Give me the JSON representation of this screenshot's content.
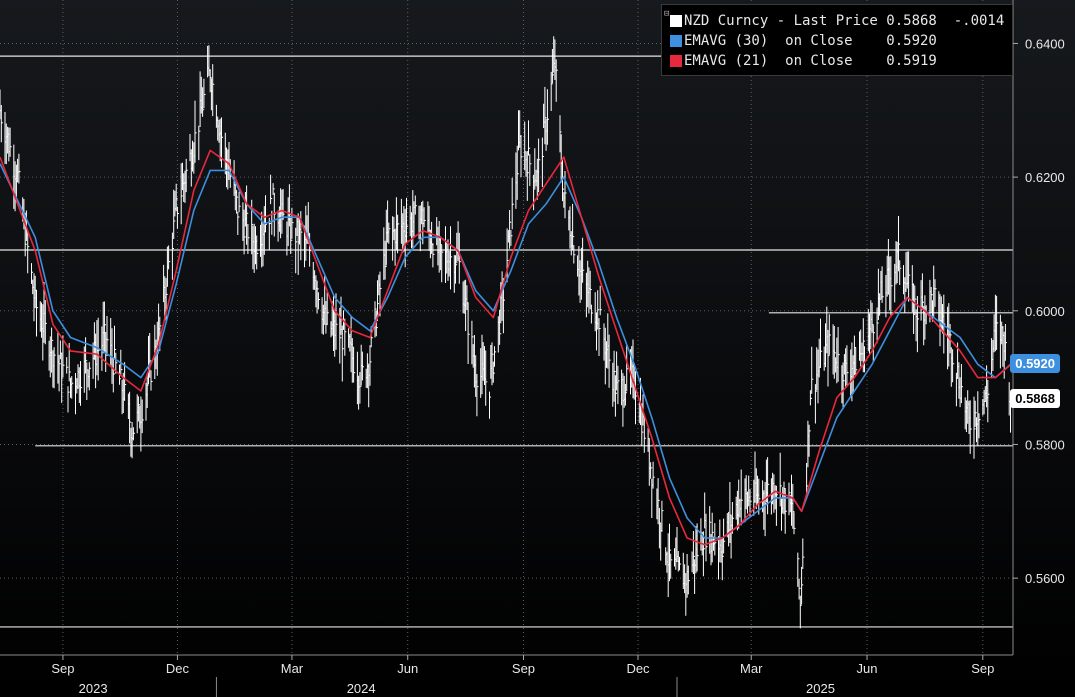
{
  "chart_data": {
    "type": "line",
    "title": "",
    "ylim": [
      0.5485,
      0.6465
    ],
    "y_ticks": [
      "0.6400",
      "0.6200",
      "0.6000",
      "0.5800",
      "0.5600"
    ],
    "x_range": [
      "2023-07-13",
      "2025-09-25"
    ],
    "x_month_ticks": [
      {
        "label": "Sep",
        "date": "2023-09-01"
      },
      {
        "label": "Dec",
        "date": "2023-12-01"
      },
      {
        "label": "Mar",
        "date": "2024-03-01"
      },
      {
        "label": "Jun",
        "date": "2024-06-01"
      },
      {
        "label": "Sep",
        "date": "2024-09-01"
      },
      {
        "label": "Dec",
        "date": "2024-12-01"
      },
      {
        "label": "Mar",
        "date": "2025-03-01"
      },
      {
        "label": "Jun",
        "date": "2025-06-01"
      },
      {
        "label": "Sep",
        "date": "2025-09-01"
      }
    ],
    "x_year_labels": [
      {
        "label": "2023",
        "date": "2023-09-25"
      },
      {
        "label": "2024",
        "date": "2024-04-25"
      },
      {
        "label": "2025",
        "date": "2025-04-25"
      }
    ],
    "year_dividers": [
      "2024-01-01",
      "2025-01-01"
    ],
    "grid": true,
    "legend": "top-right",
    "reference_lines": [
      {
        "y": 0.6381,
        "x_from": "2023-07-13"
      },
      {
        "y": 0.6091,
        "x_from": "2023-07-13"
      },
      {
        "y": 0.5997,
        "x_from": "2025-03-15"
      },
      {
        "y": 0.5798,
        "x_from": "2023-08-10"
      },
      {
        "y": 0.5527,
        "x_from": "2023-07-13"
      }
    ],
    "series": [
      {
        "name": "NZD Curncy - Last Price",
        "legend_value": "0.5868",
        "legend_change": "-.0014",
        "color": "#ffffff",
        "style": "hlc_bars",
        "points": [
          [
            "2023-07-13",
            0.63
          ],
          [
            "2023-07-27",
            0.62
          ],
          [
            "2023-08-10",
            0.601
          ],
          [
            "2023-08-24",
            0.594
          ],
          [
            "2023-09-07",
            0.589
          ],
          [
            "2023-09-21",
            0.592
          ],
          [
            "2023-10-05",
            0.596
          ],
          [
            "2023-10-19",
            0.588
          ],
          [
            "2023-10-26",
            0.582
          ],
          [
            "2023-11-02",
            0.585
          ],
          [
            "2023-11-16",
            0.596
          ],
          [
            "2023-11-30",
            0.615
          ],
          [
            "2023-12-14",
            0.625
          ],
          [
            "2023-12-27",
            0.636
          ],
          [
            "2024-01-04",
            0.627
          ],
          [
            "2024-01-18",
            0.615
          ],
          [
            "2024-02-01",
            0.61
          ],
          [
            "2024-02-15",
            0.616
          ],
          [
            "2024-02-29",
            0.612
          ],
          [
            "2024-03-14",
            0.61
          ],
          [
            "2024-03-28",
            0.598
          ],
          [
            "2024-04-11",
            0.596
          ],
          [
            "2024-04-25",
            0.59
          ],
          [
            "2024-05-02",
            0.593
          ],
          [
            "2024-05-16",
            0.611
          ],
          [
            "2024-05-30",
            0.613
          ],
          [
            "2024-06-13",
            0.614
          ],
          [
            "2024-06-27",
            0.608
          ],
          [
            "2024-07-11",
            0.608
          ],
          [
            "2024-07-25",
            0.591
          ],
          [
            "2024-08-05",
            0.589
          ],
          [
            "2024-08-15",
            0.601
          ],
          [
            "2024-08-29",
            0.625
          ],
          [
            "2024-09-12",
            0.62
          ],
          [
            "2024-09-26",
            0.637
          ],
          [
            "2024-10-03",
            0.617
          ],
          [
            "2024-10-17",
            0.605
          ],
          [
            "2024-10-31",
            0.599
          ],
          [
            "2024-11-14",
            0.588
          ],
          [
            "2024-11-28",
            0.59
          ],
          [
            "2024-12-12",
            0.576
          ],
          [
            "2024-12-26",
            0.562
          ],
          [
            "2025-01-09",
            0.56
          ],
          [
            "2025-01-23",
            0.567
          ],
          [
            "2025-02-06",
            0.565
          ],
          [
            "2025-02-20",
            0.572
          ],
          [
            "2025-03-06",
            0.572
          ],
          [
            "2025-03-20",
            0.574
          ],
          [
            "2025-04-03",
            0.57
          ],
          [
            "2025-04-09",
            0.556
          ],
          [
            "2025-04-17",
            0.588
          ],
          [
            "2025-05-01",
            0.595
          ],
          [
            "2025-05-15",
            0.591
          ],
          [
            "2025-05-29",
            0.594
          ],
          [
            "2025-06-12",
            0.602
          ],
          [
            "2025-06-26",
            0.608
          ],
          [
            "2025-07-10",
            0.6
          ],
          [
            "2025-07-24",
            0.602
          ],
          [
            "2025-08-07",
            0.595
          ],
          [
            "2025-08-21",
            0.583
          ],
          [
            "2025-09-04",
            0.587
          ],
          [
            "2025-09-11",
            0.597
          ],
          [
            "2025-09-18",
            0.596
          ],
          [
            "2025-09-23",
            0.5868
          ]
        ]
      },
      {
        "name": "EMAVG (30) on Close",
        "legend_value": "0.5920",
        "tag": "0.5920",
        "color": "#3d8fe0",
        "points": [
          [
            "2023-07-13",
            0.622
          ],
          [
            "2023-08-10",
            0.611
          ],
          [
            "2023-08-24",
            0.6
          ],
          [
            "2023-09-07",
            0.596
          ],
          [
            "2023-09-28",
            0.5945
          ],
          [
            "2023-10-19",
            0.592
          ],
          [
            "2023-11-02",
            0.59
          ],
          [
            "2023-11-16",
            0.594
          ],
          [
            "2023-11-30",
            0.604
          ],
          [
            "2023-12-14",
            0.615
          ],
          [
            "2023-12-27",
            0.621
          ],
          [
            "2024-01-11",
            0.621
          ],
          [
            "2024-01-25",
            0.616
          ],
          [
            "2024-02-08",
            0.613
          ],
          [
            "2024-02-22",
            0.614
          ],
          [
            "2024-03-07",
            0.614
          ],
          [
            "2024-03-21",
            0.608
          ],
          [
            "2024-04-04",
            0.602
          ],
          [
            "2024-04-18",
            0.599
          ],
          [
            "2024-05-02",
            0.597
          ],
          [
            "2024-05-16",
            0.602
          ],
          [
            "2024-05-30",
            0.608
          ],
          [
            "2024-06-13",
            0.611
          ],
          [
            "2024-06-27",
            0.611
          ],
          [
            "2024-07-11",
            0.609
          ],
          [
            "2024-07-25",
            0.603
          ],
          [
            "2024-08-08",
            0.6
          ],
          [
            "2024-08-22",
            0.606
          ],
          [
            "2024-09-05",
            0.613
          ],
          [
            "2024-09-19",
            0.616
          ],
          [
            "2024-10-03",
            0.62
          ],
          [
            "2024-10-17",
            0.614
          ],
          [
            "2024-10-31",
            0.607
          ],
          [
            "2024-11-14",
            0.599
          ],
          [
            "2024-11-28",
            0.592
          ],
          [
            "2024-12-12",
            0.584
          ],
          [
            "2024-12-26",
            0.575
          ],
          [
            "2025-01-09",
            0.569
          ],
          [
            "2025-01-23",
            0.566
          ],
          [
            "2025-02-06",
            0.566
          ],
          [
            "2025-02-20",
            0.568
          ],
          [
            "2025-03-06",
            0.57
          ],
          [
            "2025-03-20",
            0.572
          ],
          [
            "2025-04-03",
            0.572
          ],
          [
            "2025-04-10",
            0.57
          ],
          [
            "2025-04-24",
            0.577
          ],
          [
            "2025-05-08",
            0.584
          ],
          [
            "2025-05-22",
            0.588
          ],
          [
            "2025-06-05",
            0.592
          ],
          [
            "2025-06-19",
            0.597
          ],
          [
            "2025-07-03",
            0.602
          ],
          [
            "2025-07-17",
            0.6
          ],
          [
            "2025-07-31",
            0.598
          ],
          [
            "2025-08-14",
            0.596
          ],
          [
            "2025-08-28",
            0.592
          ],
          [
            "2025-09-11",
            0.59
          ],
          [
            "2025-09-23",
            0.592
          ]
        ]
      },
      {
        "name": "EMAVG (21) on Close",
        "legend_value": "0.5919",
        "color": "#e8283c",
        "points": [
          [
            "2023-07-13",
            0.623
          ],
          [
            "2023-08-10",
            0.609
          ],
          [
            "2023-08-24",
            0.598
          ],
          [
            "2023-09-07",
            0.594
          ],
          [
            "2023-09-28",
            0.5935
          ],
          [
            "2023-10-19",
            0.59
          ],
          [
            "2023-11-02",
            0.588
          ],
          [
            "2023-11-16",
            0.595
          ],
          [
            "2023-11-30",
            0.606
          ],
          [
            "2023-12-14",
            0.618
          ],
          [
            "2023-12-27",
            0.624
          ],
          [
            "2024-01-11",
            0.622
          ],
          [
            "2024-01-25",
            0.616
          ],
          [
            "2024-02-08",
            0.614
          ],
          [
            "2024-02-22",
            0.615
          ],
          [
            "2024-03-07",
            0.614
          ],
          [
            "2024-03-21",
            0.607
          ],
          [
            "2024-04-04",
            0.6
          ],
          [
            "2024-04-18",
            0.597
          ],
          [
            "2024-05-02",
            0.596
          ],
          [
            "2024-05-16",
            0.603
          ],
          [
            "2024-05-30",
            0.61
          ],
          [
            "2024-06-13",
            0.612
          ],
          [
            "2024-06-27",
            0.611
          ],
          [
            "2024-07-11",
            0.609
          ],
          [
            "2024-07-25",
            0.602
          ],
          [
            "2024-08-08",
            0.599
          ],
          [
            "2024-08-22",
            0.608
          ],
          [
            "2024-09-05",
            0.615
          ],
          [
            "2024-09-19",
            0.619
          ],
          [
            "2024-10-03",
            0.623
          ],
          [
            "2024-10-17",
            0.614
          ],
          [
            "2024-10-31",
            0.605
          ],
          [
            "2024-11-14",
            0.597
          ],
          [
            "2024-11-28",
            0.589
          ],
          [
            "2024-12-12",
            0.581
          ],
          [
            "2024-12-26",
            0.572
          ],
          [
            "2025-01-09",
            0.566
          ],
          [
            "2025-01-23",
            0.565
          ],
          [
            "2025-02-06",
            0.566
          ],
          [
            "2025-02-20",
            0.568
          ],
          [
            "2025-03-06",
            0.571
          ],
          [
            "2025-03-20",
            0.573
          ],
          [
            "2025-04-03",
            0.572
          ],
          [
            "2025-04-10",
            0.57
          ],
          [
            "2025-04-24",
            0.579
          ],
          [
            "2025-05-08",
            0.587
          ],
          [
            "2025-05-22",
            0.59
          ],
          [
            "2025-06-05",
            0.594
          ],
          [
            "2025-06-19",
            0.599
          ],
          [
            "2025-07-03",
            0.602
          ],
          [
            "2025-07-17",
            0.6
          ],
          [
            "2025-07-31",
            0.597
          ],
          [
            "2025-08-14",
            0.594
          ],
          [
            "2025-08-28",
            0.59
          ],
          [
            "2025-09-11",
            0.59
          ],
          [
            "2025-09-23",
            0.5919
          ]
        ]
      }
    ],
    "last_price_tag": "0.5868"
  },
  "legend": {
    "rows": [
      {
        "text": "NZD Curncy - Last Price 0.5868  -.0014",
        "color": "#ffffff"
      },
      {
        "text": "EMAVG (30)  on Close    0.5920",
        "color": "#3d8fe0"
      },
      {
        "text": "EMAVG (21)  on Close    0.5919",
        "color": "#e8283c"
      }
    ],
    "toggle_symbol": "⊟"
  }
}
